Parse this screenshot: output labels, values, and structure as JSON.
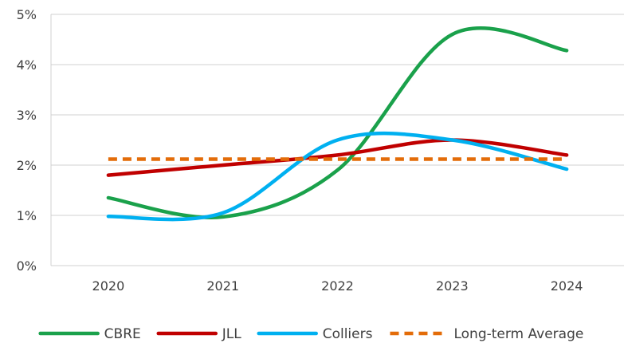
{
  "chart_data": {
    "type": "line",
    "title": "",
    "xlabel": "",
    "ylabel": "",
    "x": [
      "2020",
      "2021",
      "2022",
      "2023",
      "2024"
    ],
    "ylim": [
      0,
      5
    ],
    "yticks": [
      0,
      1,
      2,
      3,
      4,
      5
    ],
    "ytick_labels": [
      "0%",
      "1%",
      "2%",
      "3%",
      "4%",
      "5%"
    ],
    "grid": "horizontal",
    "legend_position": "bottom",
    "series": [
      {
        "name": "CBRE",
        "values": [
          1.35,
          0.97,
          1.9,
          4.6,
          4.28
        ],
        "color": "#1aa14b",
        "style": "solid"
      },
      {
        "name": "JLL",
        "values": [
          1.8,
          2.0,
          2.2,
          2.5,
          2.2
        ],
        "color": "#c00000",
        "style": "solid"
      },
      {
        "name": "Colliers",
        "values": [
          0.98,
          1.05,
          2.5,
          2.5,
          1.92
        ],
        "color": "#00b0f0",
        "style": "solid"
      },
      {
        "name": "Long-term Average",
        "values": [
          2.12,
          2.12,
          2.12,
          2.12,
          2.12
        ],
        "color": "#e36c09",
        "style": "dashed"
      }
    ]
  }
}
